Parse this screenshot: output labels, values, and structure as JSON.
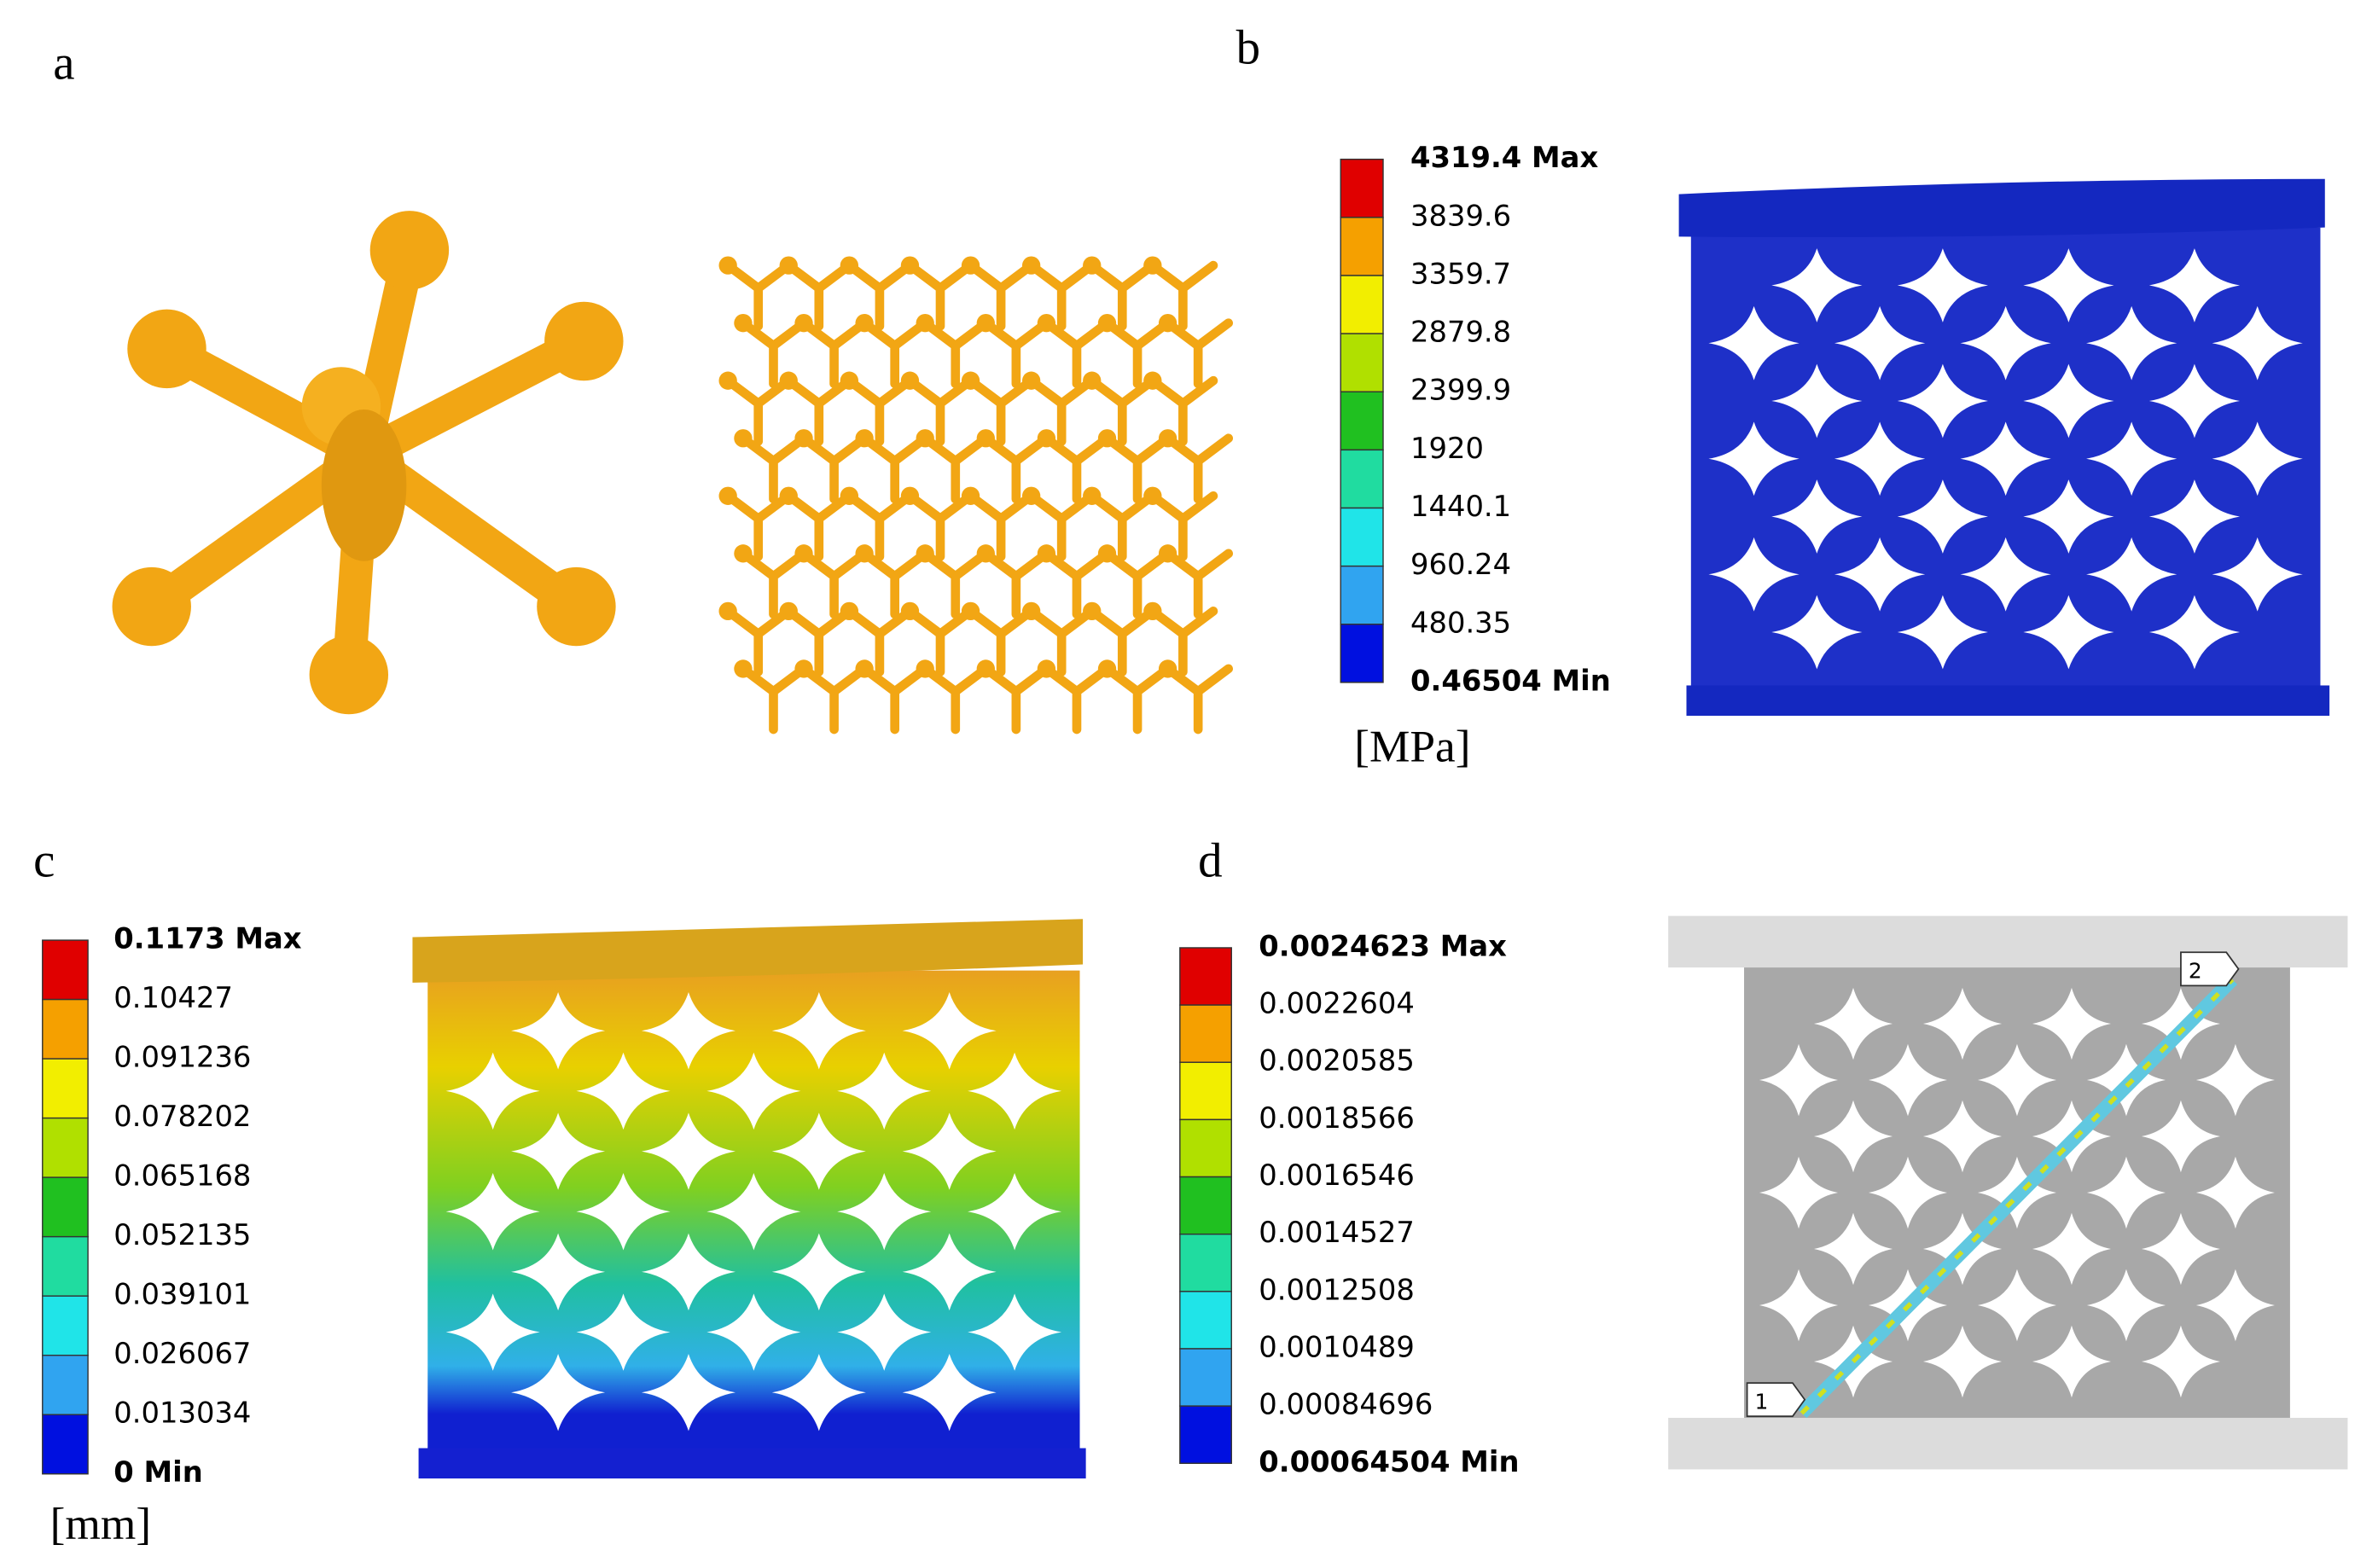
{
  "panels": [
    {
      "label": "a"
    },
    {
      "label": "b",
      "legend": {
        "labels": [
          "4319.4 Max",
          "3839.6",
          "3359.7",
          "2879.8",
          "2399.9",
          "1920",
          "1440.1",
          "960.24",
          "480.35",
          "0.46504 Min"
        ],
        "unit": "[MPa]"
      }
    },
    {
      "label": "c",
      "legend": {
        "labels": [
          "0.1173 Max",
          "0.10427",
          "0.091236",
          "0.078202",
          "0.065168",
          "0.052135",
          "0.039101",
          "0.026067",
          "0.013034",
          "0 Min"
        ],
        "unit": "[mm]"
      }
    },
    {
      "label": "d",
      "legend": {
        "labels": [
          "0.0024623 Max",
          "0.0022604",
          "0.0020585",
          "0.0018566",
          "0.0016546",
          "0.0014527",
          "0.0012508",
          "0.0010489",
          "0.00084696",
          "0.00064504 Min"
        ]
      },
      "probes": [
        "1",
        "2"
      ]
    }
  ],
  "colors": [
    "#e00000",
    "#f5a000",
    "#f2ee00",
    "#b0e000",
    "#20c020",
    "#20dca0",
    "#20e4e8",
    "#30a4f0",
    "#0010e0"
  ]
}
